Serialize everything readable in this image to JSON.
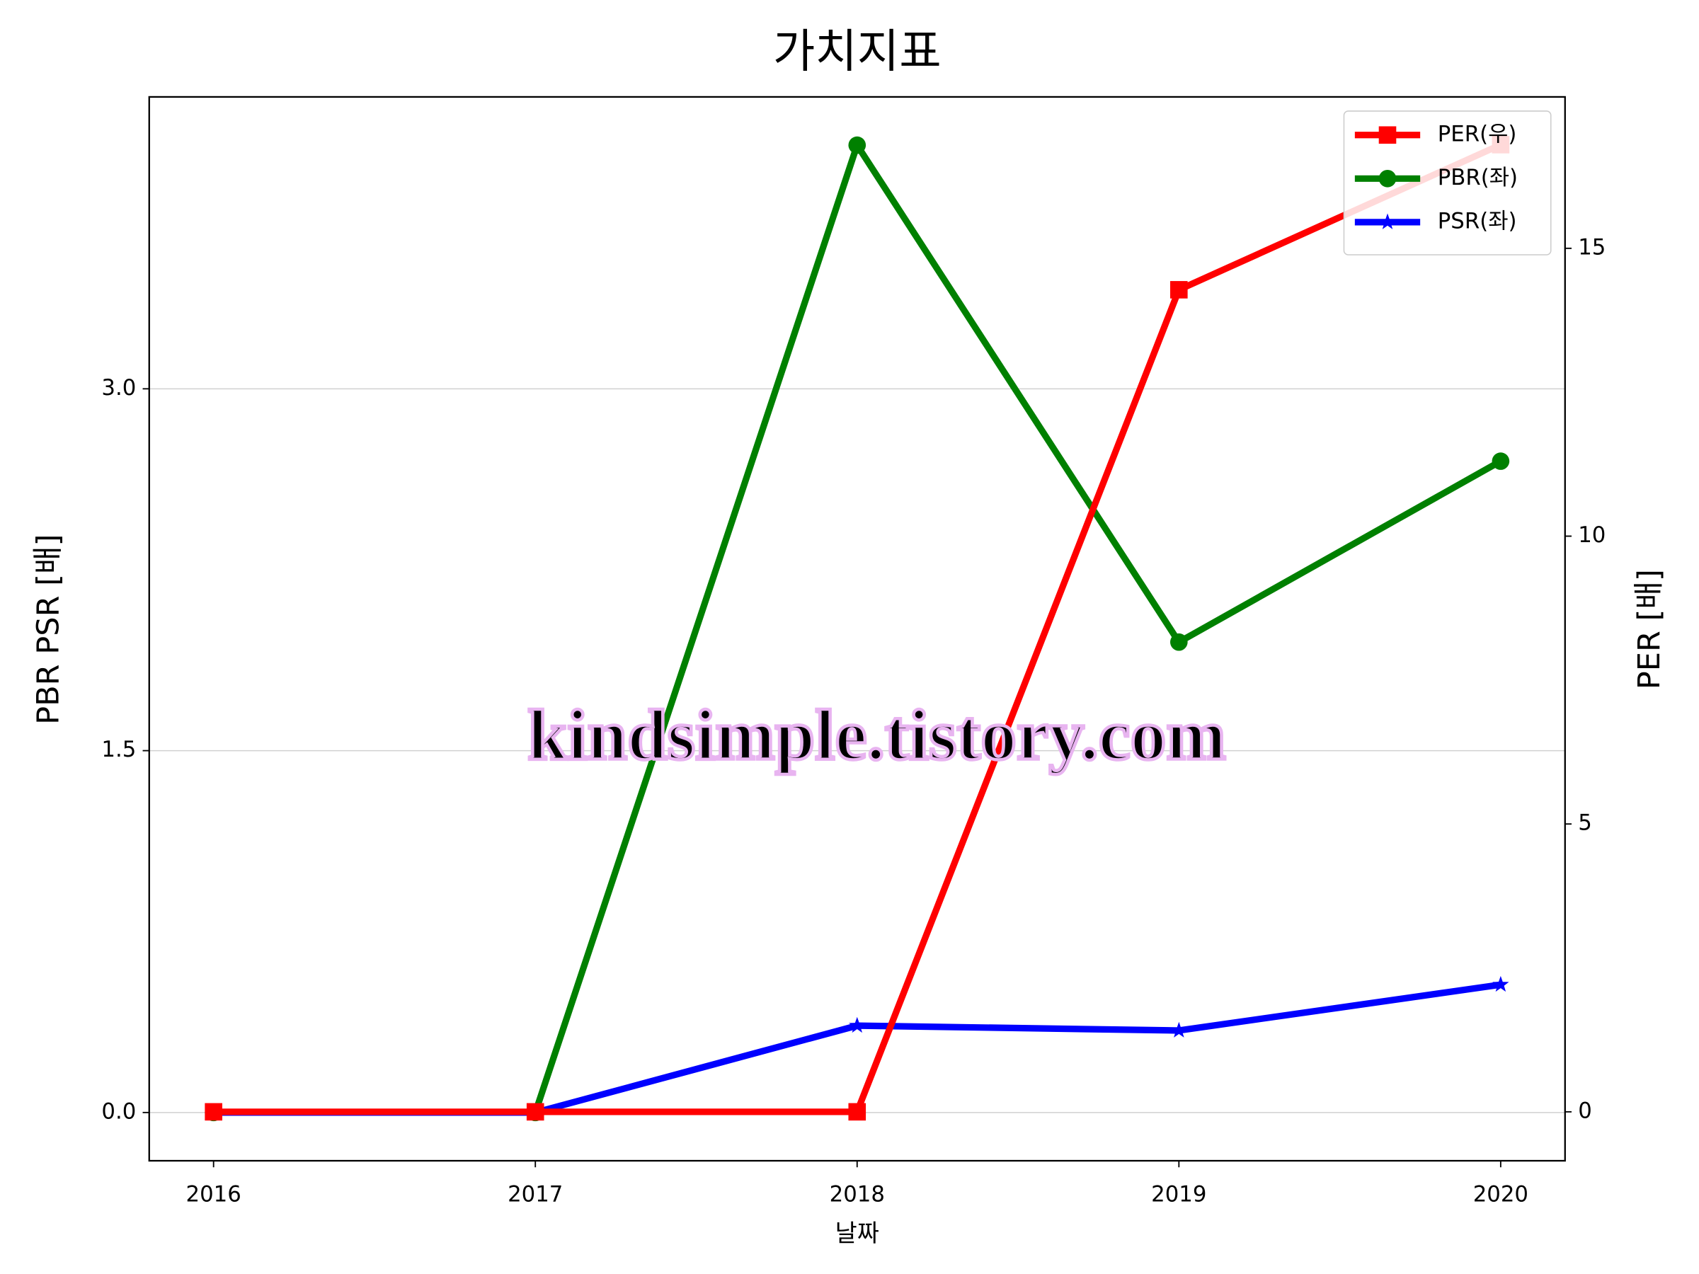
{
  "chart_data": {
    "type": "line",
    "title": "가치지표",
    "xlabel": "날짜",
    "ylabel": "PBR PSR [배]",
    "y2label": "PER [배]",
    "ylabel_color": "#008000",
    "y2label_color": "#ff0000",
    "x": [
      2016,
      2017,
      2018,
      2019,
      2020
    ],
    "xlim": [
      2015.8,
      2020.2
    ],
    "xticks": [
      2016,
      2017,
      2018,
      2019,
      2020
    ],
    "ylim": [
      -0.2,
      4.21
    ],
    "yticks": [
      {
        "value": 0,
        "label": "0.0"
      },
      {
        "value": 1.5,
        "label": "1.5"
      },
      {
        "value": 3,
        "label": "3.0"
      }
    ],
    "y2lim": [
      -0.85,
      17.63
    ],
    "y2ticks": [
      0,
      5,
      10,
      15
    ],
    "grid": true,
    "legend": "upper right",
    "series": [
      {
        "name": "PER(우)",
        "color": "#ff0000",
        "marker": "square",
        "axis": "y2",
        "values": [
          0,
          0,
          0,
          14.28,
          16.8
        ]
      },
      {
        "name": "PBR(좌)",
        "color": "#008000",
        "marker": "circle",
        "values": [
          0,
          0,
          4.01,
          1.95,
          2.7
        ]
      },
      {
        "name": "PSR(좌)",
        "color": "#0000ff",
        "marker": "star",
        "values": [
          0,
          0,
          0.36,
          0.34,
          0.53
        ]
      }
    ],
    "watermark": "kindsimple.tistory.com"
  }
}
